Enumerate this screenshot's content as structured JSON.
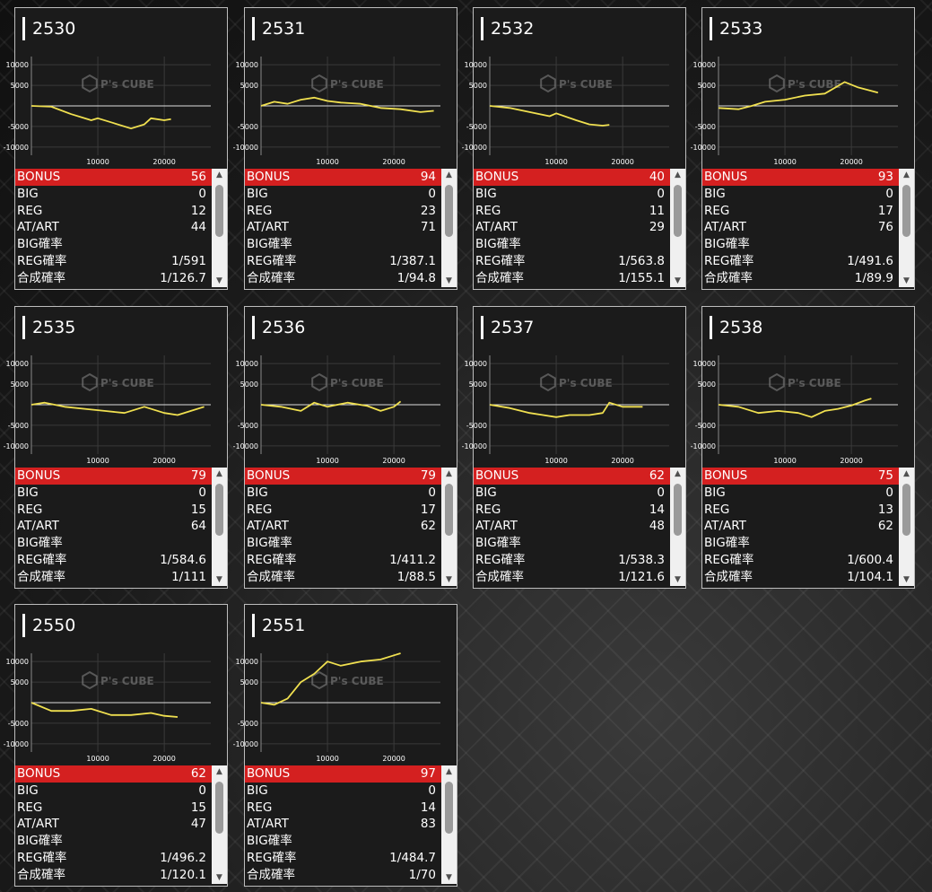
{
  "machines": [
    {
      "id": "2530",
      "bonus": "56",
      "big": "0",
      "reg": "12",
      "at_art": "44",
      "big_rate": "",
      "reg_rate": "1/591",
      "total_rate": "1/126.7",
      "chart_data": {
        "type": "line",
        "x": [
          0,
          3000,
          6000,
          9000,
          10000,
          12000,
          15000,
          17000,
          18000,
          20000,
          21000
        ],
        "y": [
          0,
          -200,
          -2000,
          -3500,
          -3000,
          -4000,
          -5500,
          -4500,
          -3000,
          -3500,
          -3200
        ]
      }
    },
    {
      "id": "2531",
      "bonus": "94",
      "big": "0",
      "reg": "23",
      "at_art": "71",
      "big_rate": "",
      "reg_rate": "1/387.1",
      "total_rate": "1/94.8",
      "chart_data": {
        "type": "line",
        "x": [
          0,
          2000,
          4000,
          6000,
          8000,
          10000,
          12000,
          15000,
          18000,
          21000,
          24000,
          26000
        ],
        "y": [
          0,
          1000,
          500,
          1500,
          2000,
          1200,
          800,
          500,
          -500,
          -800,
          -1500,
          -1200
        ]
      }
    },
    {
      "id": "2532",
      "bonus": "40",
      "big": "0",
      "reg": "11",
      "at_art": "29",
      "big_rate": "",
      "reg_rate": "1/563.8",
      "total_rate": "1/155.1",
      "chart_data": {
        "type": "line",
        "x": [
          0,
          3000,
          6000,
          9000,
          10000,
          13000,
          15000,
          17000,
          18000
        ],
        "y": [
          0,
          -500,
          -1500,
          -2500,
          -1800,
          -3500,
          -4500,
          -4800,
          -4600
        ]
      }
    },
    {
      "id": "2533",
      "bonus": "93",
      "big": "0",
      "reg": "17",
      "at_art": "76",
      "big_rate": "",
      "reg_rate": "1/491.6",
      "total_rate": "1/89.9",
      "chart_data": {
        "type": "line",
        "x": [
          0,
          3000,
          5000,
          7000,
          10000,
          13000,
          16000,
          19000,
          21000,
          24000
        ],
        "y": [
          -500,
          -800,
          0,
          1000,
          1500,
          2500,
          3000,
          5800,
          4500,
          3200
        ]
      }
    },
    {
      "id": "2535",
      "bonus": "79",
      "big": "0",
      "reg": "15",
      "at_art": "64",
      "big_rate": "",
      "reg_rate": "1/584.6",
      "total_rate": "1/111",
      "chart_data": {
        "type": "line",
        "x": [
          0,
          2000,
          5000,
          8000,
          11000,
          14000,
          17000,
          20000,
          22000,
          24000,
          26000
        ],
        "y": [
          0,
          500,
          -500,
          -1000,
          -1500,
          -2000,
          -500,
          -2000,
          -2500,
          -1500,
          -500
        ]
      }
    },
    {
      "id": "2536",
      "bonus": "79",
      "big": "0",
      "reg": "17",
      "at_art": "62",
      "big_rate": "",
      "reg_rate": "1/411.2",
      "total_rate": "1/88.5",
      "chart_data": {
        "type": "line",
        "x": [
          0,
          3000,
          6000,
          8000,
          10000,
          13000,
          16000,
          18000,
          20000,
          21000
        ],
        "y": [
          0,
          -500,
          -1500,
          500,
          -500,
          500,
          -300,
          -1500,
          -500,
          800
        ]
      }
    },
    {
      "id": "2537",
      "bonus": "62",
      "big": "0",
      "reg": "14",
      "at_art": "48",
      "big_rate": "",
      "reg_rate": "1/538.3",
      "total_rate": "1/121.6",
      "chart_data": {
        "type": "line",
        "x": [
          0,
          3000,
          6000,
          8000,
          10000,
          12000,
          15000,
          17000,
          18000,
          20000,
          23000
        ],
        "y": [
          0,
          -800,
          -2000,
          -2500,
          -3000,
          -2500,
          -2500,
          -2000,
          500,
          -500,
          -500
        ]
      }
    },
    {
      "id": "2538",
      "bonus": "75",
      "big": "0",
      "reg": "13",
      "at_art": "62",
      "big_rate": "",
      "reg_rate": "1/600.4",
      "total_rate": "1/104.1",
      "chart_data": {
        "type": "line",
        "x": [
          0,
          3000,
          6000,
          9000,
          12000,
          14000,
          16000,
          18000,
          20000,
          22000,
          23000
        ],
        "y": [
          0,
          -500,
          -2000,
          -1500,
          -2000,
          -3000,
          -1500,
          -1000,
          -200,
          1000,
          1500
        ]
      }
    },
    {
      "id": "2550",
      "bonus": "62",
      "big": "0",
      "reg": "15",
      "at_art": "47",
      "big_rate": "",
      "reg_rate": "1/496.2",
      "total_rate": "1/120.1",
      "chart_data": {
        "type": "line",
        "x": [
          0,
          3000,
          6000,
          9000,
          12000,
          15000,
          18000,
          20000,
          22000
        ],
        "y": [
          0,
          -2000,
          -2000,
          -1500,
          -3000,
          -3000,
          -2500,
          -3200,
          -3500
        ]
      }
    },
    {
      "id": "2551",
      "bonus": "97",
      "big": "0",
      "reg": "14",
      "at_art": "83",
      "big_rate": "",
      "reg_rate": "1/484.7",
      "total_rate": "1/70",
      "chart_data": {
        "type": "line",
        "x": [
          0,
          2000,
          4000,
          6000,
          8000,
          10000,
          12000,
          15000,
          18000,
          20000,
          21000
        ],
        "y": [
          0,
          -500,
          1000,
          5000,
          7000,
          10000,
          9000,
          10000,
          10500,
          11500,
          12000
        ]
      }
    }
  ],
  "labels": {
    "bonus": "BONUS",
    "big": "BIG",
    "reg": "REG",
    "at_art": "AT/ART",
    "big_rate": "BIG確率",
    "reg_rate": "REG確率",
    "total_rate": "合成確率"
  },
  "chart_axes": {
    "y_ticks": [
      "10000",
      "5000",
      "-5000",
      "-10000"
    ],
    "x_ticks": [
      "10000",
      "20000"
    ],
    "x_range": [
      0,
      27000
    ],
    "y_range": [
      -12000,
      12000
    ]
  },
  "watermark": "P's CUBE",
  "colors": {
    "line": "#f0e050",
    "bonus_bg": "#d42020",
    "panel_bg": "#1b1b1b"
  },
  "icons": {
    "scroll_up": "▲",
    "scroll_down": "▼"
  }
}
